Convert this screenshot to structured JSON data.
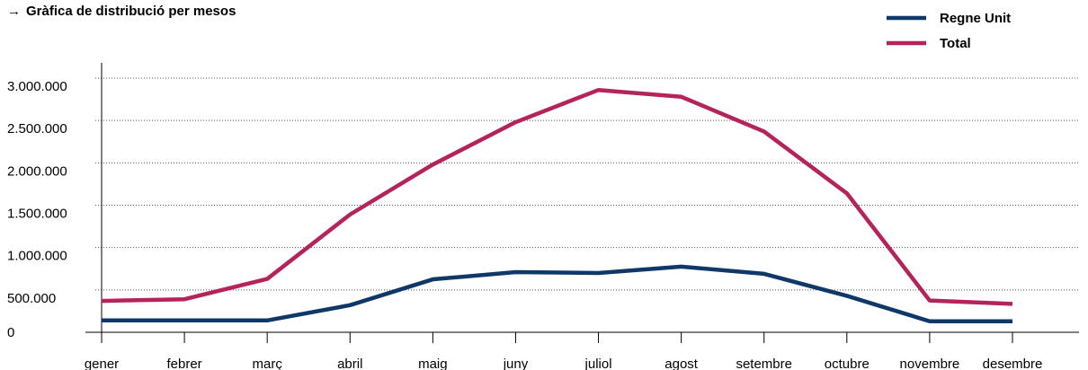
{
  "title": {
    "arrow": "→",
    "text": "Gràfica de distribució per mesos"
  },
  "colors": {
    "regne_unit": "#0f3868",
    "total": "#b5235a"
  },
  "chart_data": {
    "type": "line",
    "title": "Gràfica de distribució per mesos",
    "xlabel": "",
    "ylabel": "",
    "categories": [
      "gener",
      "febrer",
      "març",
      "abril",
      "maig",
      "juny",
      "juliol",
      "agost",
      "setembre",
      "octubre",
      "novembre",
      "desembre"
    ],
    "series": [
      {
        "name": "Regne Unit",
        "color": "#0f3868",
        "values": [
          140000,
          140000,
          140000,
          320000,
          625000,
          710000,
          700000,
          775000,
          690000,
          430000,
          130000,
          130000
        ]
      },
      {
        "name": "Total",
        "color": "#b5235a",
        "values": [
          370000,
          390000,
          630000,
          1390000,
          1980000,
          2480000,
          2860000,
          2780000,
          2370000,
          1640000,
          375000,
          335000
        ]
      }
    ],
    "yticks": [
      0,
      500000,
      1000000,
      1500000,
      2000000,
      2500000,
      3000000
    ],
    "ytick_labels": [
      "0",
      "500.000",
      "1.000.000",
      "1.500.000",
      "2.000.000",
      "2.500.000",
      "3.000.000"
    ],
    "ylim": [
      0,
      3000000
    ],
    "grid": "horizontal dotted",
    "legend": {
      "placement": "top-right",
      "entries": [
        "Regne Unit",
        "Total"
      ]
    }
  }
}
